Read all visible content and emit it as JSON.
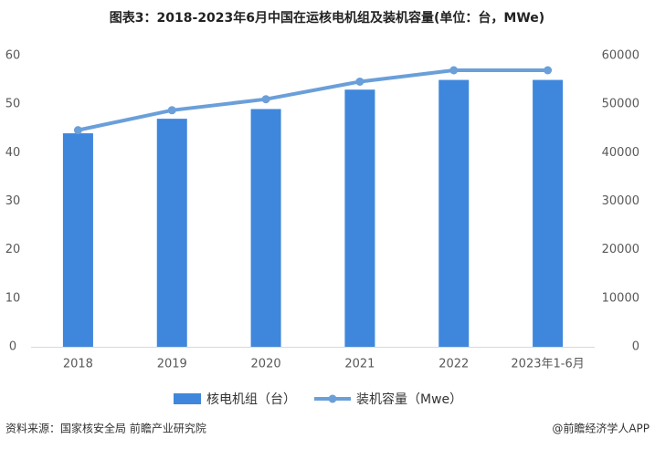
{
  "chart_data": {
    "type": "bar",
    "title": "图表3：2018-2023年6月中国在运核电机组及装机容量(单位：台，MWe)",
    "categories": [
      "2018",
      "2019",
      "2020",
      "2021",
      "2022",
      "2023年1-6月"
    ],
    "series": [
      {
        "name": "核电机组（台）",
        "type": "bar",
        "color": "#3f87dc",
        "values": [
          44,
          47,
          49,
          53,
          55,
          55
        ]
      },
      {
        "name": "装机容量（Mwe）",
        "type": "line",
        "axis": "y2",
        "color": "#6a9fd9",
        "values": [
          44645,
          48751,
          51027,
          54646,
          56990,
          56990
        ]
      }
    ],
    "ylim": [
      0,
      60
    ],
    "yticks": [
      0,
      10,
      20,
      30,
      40,
      50,
      60
    ],
    "y2lim": [
      0,
      60000
    ],
    "y2ticks": [
      0,
      10000,
      20000,
      30000,
      40000,
      50000,
      60000
    ],
    "source": "资料来源：国家核安全局 前瞻产业研究院",
    "credit": "@前瞻经济学人APP"
  }
}
